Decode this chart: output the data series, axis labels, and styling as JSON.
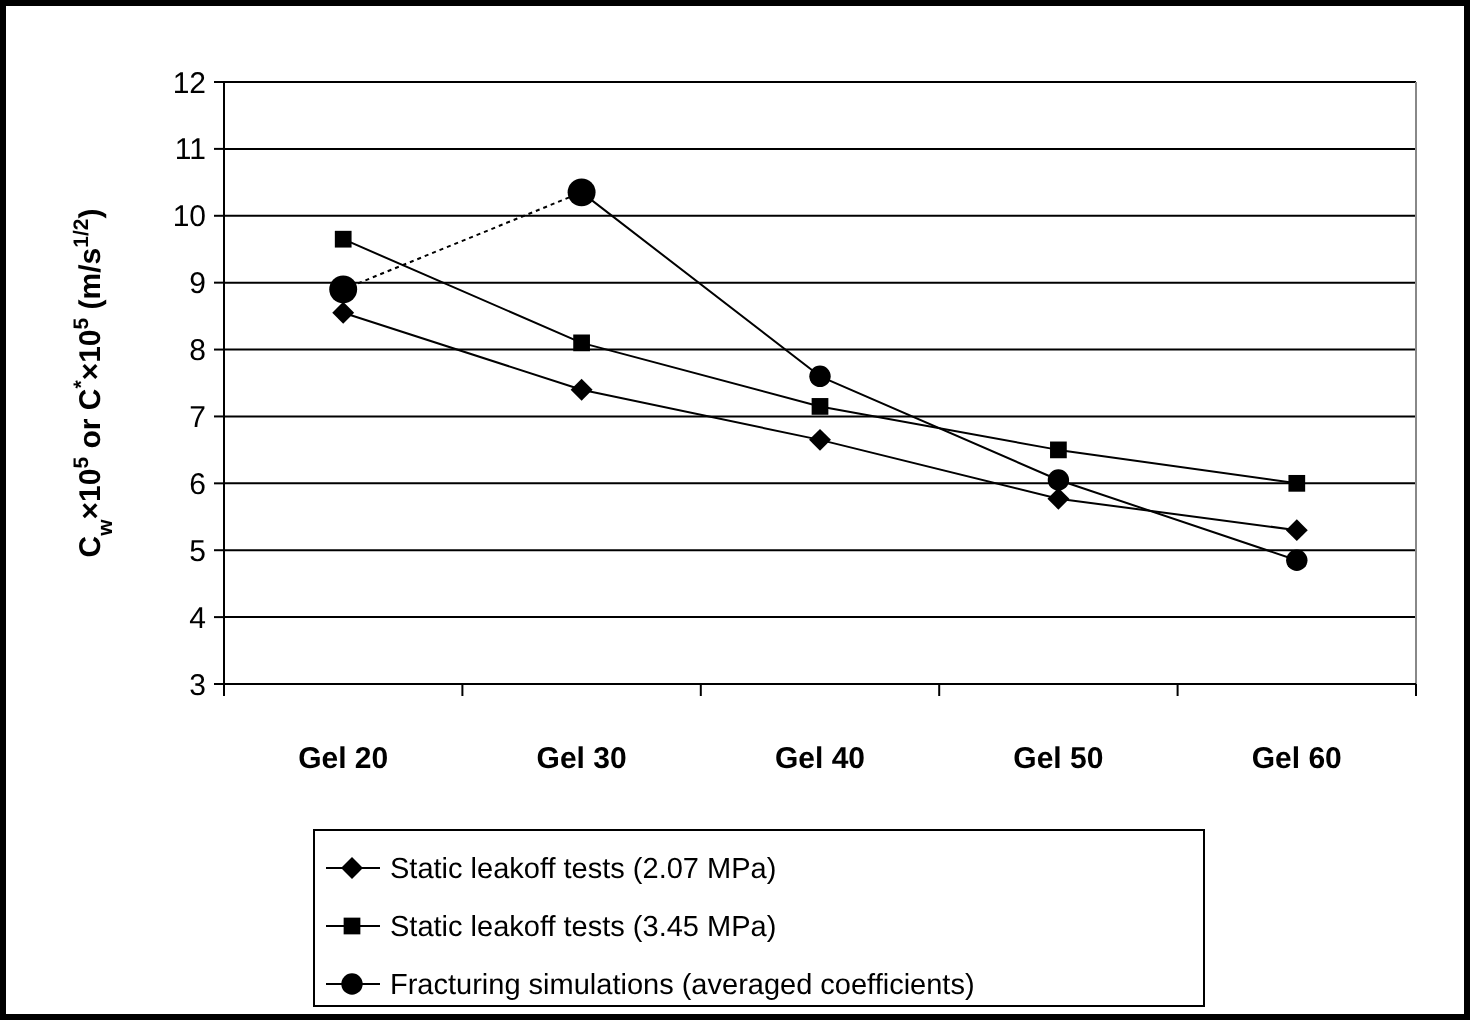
{
  "chart_data": {
    "type": "line",
    "ylabel": "C$_{w}$×10$^{5}$ or C$^{*}$×10$^{5}$ (m/s$^{1/2}$)",
    "categories": [
      "Gel 20",
      "Gel 30",
      "Gel 40",
      "Gel 50",
      "Gel 60"
    ],
    "ylim": [
      3,
      12
    ],
    "yticks": [
      3,
      4,
      5,
      6,
      7,
      8,
      9,
      10,
      11,
      12
    ],
    "grid": "y",
    "legend": "bottom",
    "series": [
      {
        "name": "Static leakoff tests (2.07 MPa)",
        "color": "#000000",
        "marker": "diamond",
        "line_style": "solid",
        "values": [
          8.55,
          7.4,
          6.65,
          5.77,
          5.3
        ]
      },
      {
        "name": "Static leakoff tests (3.45 MPa)",
        "color": "#000000",
        "marker": "square",
        "line_style": "solid",
        "values": [
          9.65,
          8.1,
          7.15,
          6.5,
          6.0
        ]
      },
      {
        "name": " Fracturing simulations (averaged coefficients)",
        "color": "#000000",
        "marker": "circle",
        "line_style": "solid",
        "values": [
          null,
          10.35,
          7.6,
          6.05,
          4.85
        ]
      },
      {
        "color": "#000000",
        "marker": "circle",
        "line_style": "dotted",
        "values": [
          8.9,
          10.35,
          null,
          null,
          null
        ]
      }
    ]
  }
}
